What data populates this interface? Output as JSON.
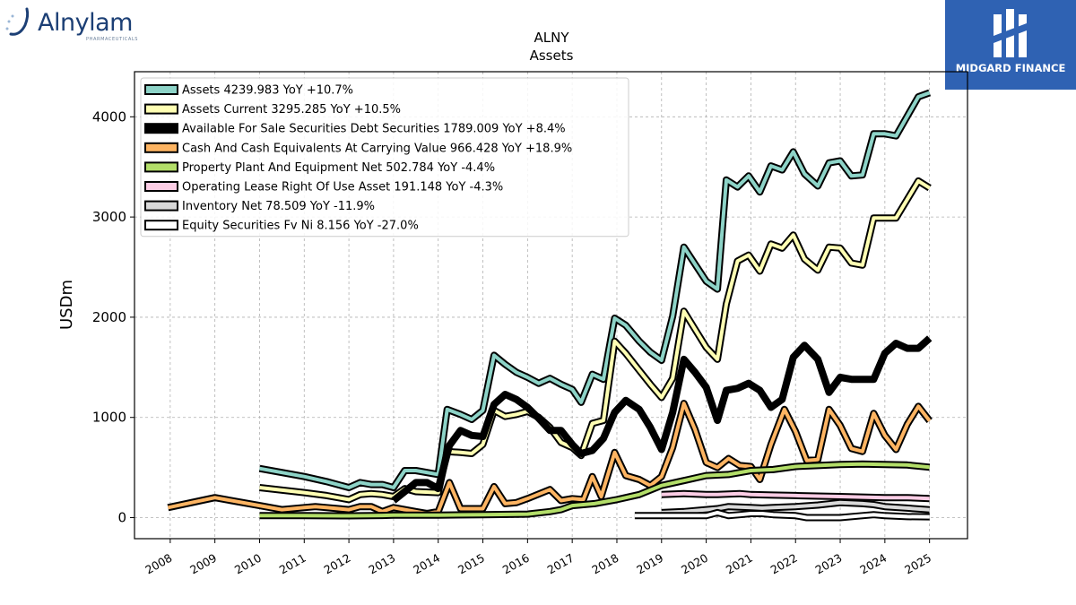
{
  "brand_left": {
    "name": "Alnylam",
    "sub": "PHARMACEUTICALS"
  },
  "brand_right": {
    "name": "MIDGARD FINANCE"
  },
  "chart_data": {
    "type": "line",
    "title": "ALNY",
    "subtitle": "Assets",
    "ylabel": "USDm",
    "xlabel": "",
    "xlim": [
      2007.2,
      2025.85
    ],
    "ylim": [
      -210,
      4450
    ],
    "yticks": [
      0,
      1000,
      2000,
      3000,
      4000
    ],
    "xticks": [
      2008,
      2009,
      2010,
      2011,
      2012,
      2013,
      2014,
      2015,
      2016,
      2017,
      2018,
      2019,
      2020,
      2021,
      2022,
      2023,
      2024,
      2025
    ],
    "grid": true,
    "legend_position": "top-left",
    "series": [
      {
        "name": "Assets  4239.983 YoY +10.7%",
        "color": "#8dd3c7",
        "width": 4,
        "points": [
          [
            2010,
            490
          ],
          [
            2011,
            410
          ],
          [
            2011.5,
            360
          ],
          [
            2012,
            300
          ],
          [
            2012.25,
            350
          ],
          [
            2012.5,
            330
          ],
          [
            2012.75,
            330
          ],
          [
            2013,
            300
          ],
          [
            2013.25,
            470
          ],
          [
            2013.5,
            470
          ],
          [
            2014,
            430
          ],
          [
            2014.2,
            1080
          ],
          [
            2014.5,
            1030
          ],
          [
            2014.75,
            980
          ],
          [
            2015,
            1070
          ],
          [
            2015.25,
            1620
          ],
          [
            2015.5,
            1530
          ],
          [
            2015.75,
            1450
          ],
          [
            2016,
            1400
          ],
          [
            2016.25,
            1340
          ],
          [
            2016.5,
            1390
          ],
          [
            2016.75,
            1330
          ],
          [
            2017,
            1280
          ],
          [
            2017.2,
            1150
          ],
          [
            2017.45,
            1430
          ],
          [
            2017.7,
            1380
          ],
          [
            2017.95,
            1990
          ],
          [
            2018.2,
            1920
          ],
          [
            2018.5,
            1760
          ],
          [
            2018.75,
            1650
          ],
          [
            2019,
            1570
          ],
          [
            2019.25,
            2010
          ],
          [
            2019.5,
            2700
          ],
          [
            2019.75,
            2530
          ],
          [
            2020,
            2360
          ],
          [
            2020.25,
            2280
          ],
          [
            2020.45,
            3370
          ],
          [
            2020.7,
            3300
          ],
          [
            2020.95,
            3410
          ],
          [
            2021.2,
            3250
          ],
          [
            2021.45,
            3510
          ],
          [
            2021.7,
            3470
          ],
          [
            2021.95,
            3650
          ],
          [
            2022.2,
            3430
          ],
          [
            2022.5,
            3310
          ],
          [
            2022.75,
            3540
          ],
          [
            2023,
            3560
          ],
          [
            2023.25,
            3410
          ],
          [
            2023.5,
            3420
          ],
          [
            2023.75,
            3830
          ],
          [
            2024,
            3830
          ],
          [
            2024.25,
            3810
          ],
          [
            2024.75,
            4200
          ],
          [
            2025,
            4240
          ]
        ]
      },
      {
        "name": "Assets Current  3295.285 YoY +10.5%",
        "color": "#ffffb3",
        "width": 4,
        "points": [
          [
            2010,
            300
          ],
          [
            2011,
            250
          ],
          [
            2011.5,
            220
          ],
          [
            2012,
            180
          ],
          [
            2012.25,
            230
          ],
          [
            2012.5,
            240
          ],
          [
            2012.75,
            230
          ],
          [
            2013,
            210
          ],
          [
            2013.25,
            290
          ],
          [
            2013.5,
            260
          ],
          [
            2014,
            250
          ],
          [
            2014.2,
            660
          ],
          [
            2014.5,
            650
          ],
          [
            2014.75,
            640
          ],
          [
            2015,
            730
          ],
          [
            2015.25,
            1070
          ],
          [
            2015.5,
            1010
          ],
          [
            2015.75,
            1030
          ],
          [
            2016,
            1060
          ],
          [
            2016.25,
            1000
          ],
          [
            2016.5,
            900
          ],
          [
            2016.75,
            750
          ],
          [
            2017,
            700
          ],
          [
            2017.2,
            620
          ],
          [
            2017.45,
            940
          ],
          [
            2017.7,
            970
          ],
          [
            2017.95,
            1760
          ],
          [
            2018.2,
            1640
          ],
          [
            2018.5,
            1470
          ],
          [
            2018.75,
            1330
          ],
          [
            2019,
            1200
          ],
          [
            2019.25,
            1390
          ],
          [
            2019.5,
            2060
          ],
          [
            2019.75,
            1880
          ],
          [
            2020,
            1700
          ],
          [
            2020.25,
            1580
          ],
          [
            2020.45,
            2130
          ],
          [
            2020.7,
            2560
          ],
          [
            2020.95,
            2620
          ],
          [
            2021.2,
            2460
          ],
          [
            2021.45,
            2730
          ],
          [
            2021.7,
            2690
          ],
          [
            2021.95,
            2820
          ],
          [
            2022.2,
            2580
          ],
          [
            2022.5,
            2470
          ],
          [
            2022.75,
            2700
          ],
          [
            2023,
            2690
          ],
          [
            2023.25,
            2540
          ],
          [
            2023.5,
            2520
          ],
          [
            2023.75,
            2990
          ],
          [
            2024,
            2990
          ],
          [
            2024.25,
            2990
          ],
          [
            2024.75,
            3360
          ],
          [
            2025,
            3290
          ]
        ]
      },
      {
        "name": "Available For Sale Securities Debt Securities  1789.009 YoY +8.4%",
        "color": "#000000",
        "width": 8,
        "points": [
          [
            2013,
            170
          ],
          [
            2013.25,
            260
          ],
          [
            2013.5,
            350
          ],
          [
            2013.75,
            350
          ],
          [
            2014,
            290
          ],
          [
            2014.25,
            720
          ],
          [
            2014.5,
            870
          ],
          [
            2014.75,
            820
          ],
          [
            2015,
            810
          ],
          [
            2015.25,
            1130
          ],
          [
            2015.5,
            1230
          ],
          [
            2015.75,
            1180
          ],
          [
            2016,
            1100
          ],
          [
            2016.25,
            990
          ],
          [
            2016.5,
            870
          ],
          [
            2016.75,
            870
          ],
          [
            2017,
            730
          ],
          [
            2017.2,
            640
          ],
          [
            2017.45,
            670
          ],
          [
            2017.7,
            790
          ],
          [
            2017.95,
            1050
          ],
          [
            2018.2,
            1170
          ],
          [
            2018.5,
            1080
          ],
          [
            2018.75,
            900
          ],
          [
            2019,
            680
          ],
          [
            2019.25,
            1050
          ],
          [
            2019.5,
            1580
          ],
          [
            2019.75,
            1450
          ],
          [
            2020,
            1300
          ],
          [
            2020.25,
            970
          ],
          [
            2020.45,
            1270
          ],
          [
            2020.7,
            1290
          ],
          [
            2020.95,
            1340
          ],
          [
            2021.2,
            1270
          ],
          [
            2021.45,
            1100
          ],
          [
            2021.7,
            1180
          ],
          [
            2021.95,
            1600
          ],
          [
            2022.2,
            1720
          ],
          [
            2022.5,
            1580
          ],
          [
            2022.75,
            1250
          ],
          [
            2023,
            1400
          ],
          [
            2023.25,
            1380
          ],
          [
            2023.75,
            1380
          ],
          [
            2024,
            1640
          ],
          [
            2024.25,
            1740
          ],
          [
            2024.5,
            1690
          ],
          [
            2024.75,
            1690
          ],
          [
            2025,
            1790
          ]
        ]
      },
      {
        "name": "Cash And Cash Equivalents At Carrying Value  966.428 YoY +18.9%",
        "color": "#fdb462",
        "width": 4,
        "points": [
          [
            2007.95,
            100
          ],
          [
            2009,
            200
          ],
          [
            2010,
            120
          ],
          [
            2010.5,
            80
          ],
          [
            2011,
            100
          ],
          [
            2011.25,
            110
          ],
          [
            2011.5,
            100
          ],
          [
            2012,
            80
          ],
          [
            2012.25,
            110
          ],
          [
            2012.5,
            110
          ],
          [
            2012.75,
            60
          ],
          [
            2013,
            100
          ],
          [
            2013.25,
            80
          ],
          [
            2013.5,
            60
          ],
          [
            2013.75,
            40
          ],
          [
            2014,
            60
          ],
          [
            2014.25,
            350
          ],
          [
            2014.5,
            90
          ],
          [
            2015,
            90
          ],
          [
            2015.25,
            310
          ],
          [
            2015.5,
            140
          ],
          [
            2015.75,
            150
          ],
          [
            2016,
            190
          ],
          [
            2016.5,
            280
          ],
          [
            2016.75,
            170
          ],
          [
            2017,
            190
          ],
          [
            2017.25,
            180
          ],
          [
            2017.45,
            410
          ],
          [
            2017.65,
            210
          ],
          [
            2017.95,
            650
          ],
          [
            2018.2,
            420
          ],
          [
            2018.5,
            380
          ],
          [
            2018.75,
            320
          ],
          [
            2019,
            410
          ],
          [
            2019.25,
            700
          ],
          [
            2019.5,
            1140
          ],
          [
            2019.75,
            880
          ],
          [
            2020,
            550
          ],
          [
            2020.25,
            500
          ],
          [
            2020.5,
            590
          ],
          [
            2020.75,
            520
          ],
          [
            2021,
            510
          ],
          [
            2021.2,
            380
          ],
          [
            2021.45,
            730
          ],
          [
            2021.75,
            1080
          ],
          [
            2022,
            860
          ],
          [
            2022.25,
            570
          ],
          [
            2022.5,
            580
          ],
          [
            2022.75,
            1080
          ],
          [
            2023,
            920
          ],
          [
            2023.25,
            690
          ],
          [
            2023.5,
            660
          ],
          [
            2023.75,
            1040
          ],
          [
            2024,
            820
          ],
          [
            2024.25,
            680
          ],
          [
            2024.5,
            930
          ],
          [
            2024.75,
            1110
          ],
          [
            2025,
            966
          ]
        ]
      },
      {
        "name": "Property Plant And Equipment Net  502.784 YoY -4.4%",
        "color": "#b3de69",
        "width": 4,
        "points": [
          [
            2010,
            20
          ],
          [
            2011,
            20
          ],
          [
            2012,
            18
          ],
          [
            2012.75,
            22
          ],
          [
            2013,
            25
          ],
          [
            2014,
            25
          ],
          [
            2015,
            30
          ],
          [
            2016,
            35
          ],
          [
            2016.5,
            60
          ],
          [
            2016.75,
            80
          ],
          [
            2017,
            120
          ],
          [
            2017.5,
            140
          ],
          [
            2018,
            180
          ],
          [
            2018.5,
            230
          ],
          [
            2019,
            320
          ],
          [
            2019.5,
            370
          ],
          [
            2020,
            420
          ],
          [
            2020.5,
            430
          ],
          [
            2021,
            470
          ],
          [
            2021.5,
            480
          ],
          [
            2022,
            510
          ],
          [
            2022.5,
            520
          ],
          [
            2023,
            530
          ],
          [
            2023.5,
            535
          ],
          [
            2024,
            530
          ],
          [
            2024.5,
            525
          ],
          [
            2025,
            503
          ]
        ]
      },
      {
        "name": "Operating Lease Right Of Use Asset  191.148 YoY -4.3%",
        "color": "#fccde5",
        "width": 4,
        "points": [
          [
            2019,
            230
          ],
          [
            2019.5,
            240
          ],
          [
            2020,
            230
          ],
          [
            2020.25,
            230
          ],
          [
            2020.75,
            240
          ],
          [
            2021,
            230
          ],
          [
            2021.5,
            225
          ],
          [
            2022,
            220
          ],
          [
            2022.5,
            215
          ],
          [
            2023,
            210
          ],
          [
            2023.5,
            205
          ],
          [
            2024,
            200
          ],
          [
            2024.5,
            200
          ],
          [
            2025,
            191
          ]
        ]
      },
      {
        "name": "Inventory Net  78.509 YoY -11.9%",
        "color": "#d9d9d9",
        "width": 4,
        "points": [
          [
            2019,
            50
          ],
          [
            2019.5,
            60
          ],
          [
            2020,
            80
          ],
          [
            2020.25,
            90
          ],
          [
            2020.5,
            110
          ],
          [
            2021,
            100
          ],
          [
            2021.25,
            95
          ],
          [
            2021.5,
            100
          ],
          [
            2022,
            110
          ],
          [
            2022.5,
            125
          ],
          [
            2023,
            150
          ],
          [
            2023.5,
            140
          ],
          [
            2023.75,
            130
          ],
          [
            2024,
            110
          ],
          [
            2024.5,
            95
          ],
          [
            2025,
            78.5
          ]
        ]
      },
      {
        "name": "Equity Securities Fv Ni  8.156 YoY -27.0%",
        "color": "#ffffff",
        "width": 4,
        "points": [
          [
            2018.4,
            20
          ],
          [
            2019,
            20
          ],
          [
            2019.5,
            20
          ],
          [
            2020,
            20
          ],
          [
            2020.25,
            50
          ],
          [
            2020.5,
            20
          ],
          [
            2020.75,
            30
          ],
          [
            2021,
            40
          ],
          [
            2021.25,
            40
          ],
          [
            2021.5,
            30
          ],
          [
            2022,
            20
          ],
          [
            2022.25,
            0
          ],
          [
            2022.5,
            0
          ],
          [
            2023,
            0
          ],
          [
            2023.5,
            20
          ],
          [
            2023.75,
            30
          ],
          [
            2024,
            20
          ],
          [
            2024.5,
            10
          ],
          [
            2025,
            8.2
          ]
        ]
      }
    ]
  }
}
